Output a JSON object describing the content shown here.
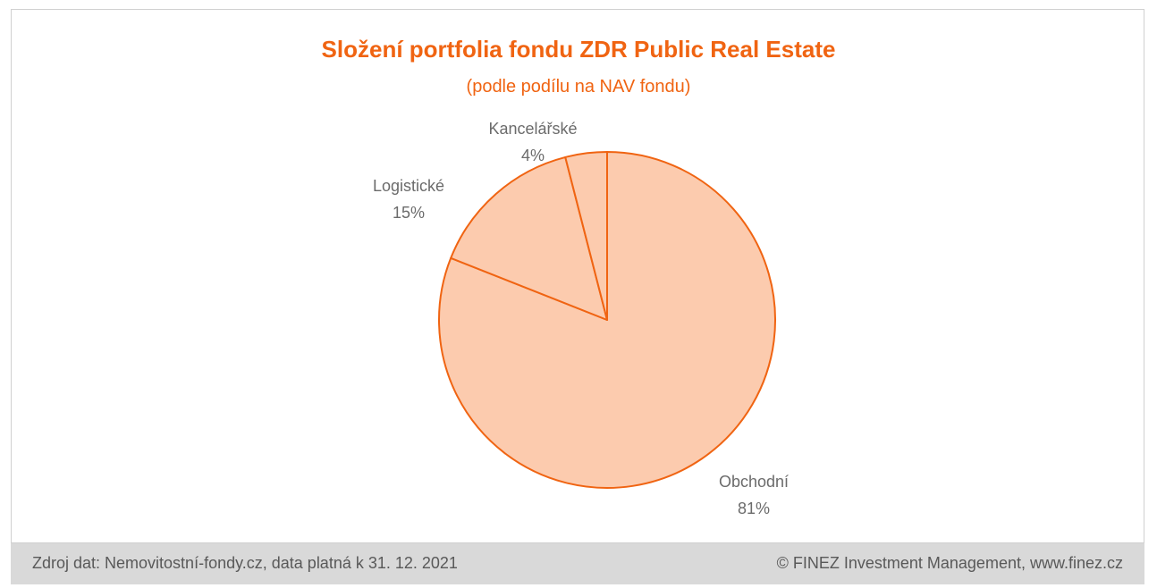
{
  "chart_data": {
    "type": "pie",
    "title": "Složení portfolia fondu ZDR Public Real Estate",
    "subtitle": "(podle podílu na NAV fondu)",
    "slices": [
      {
        "label": "Obchodní",
        "value": 81,
        "value_label": "81%"
      },
      {
        "label": "Logistické",
        "value": 15,
        "value_label": "15%"
      },
      {
        "label": "Kancelářské",
        "value": 4,
        "value_label": "4%"
      }
    ],
    "legend": "none",
    "colors": {
      "fill": "#fccbae",
      "stroke": "#f06412",
      "title": "#f06412",
      "label": "#6b6b6b"
    }
  },
  "footer": {
    "source": "Zdroj dat: Nemovitostní-fondy.cz, data platná k 31. 12. 2021",
    "copyright": "© FINEZ Investment Management, www.finez.cz"
  }
}
